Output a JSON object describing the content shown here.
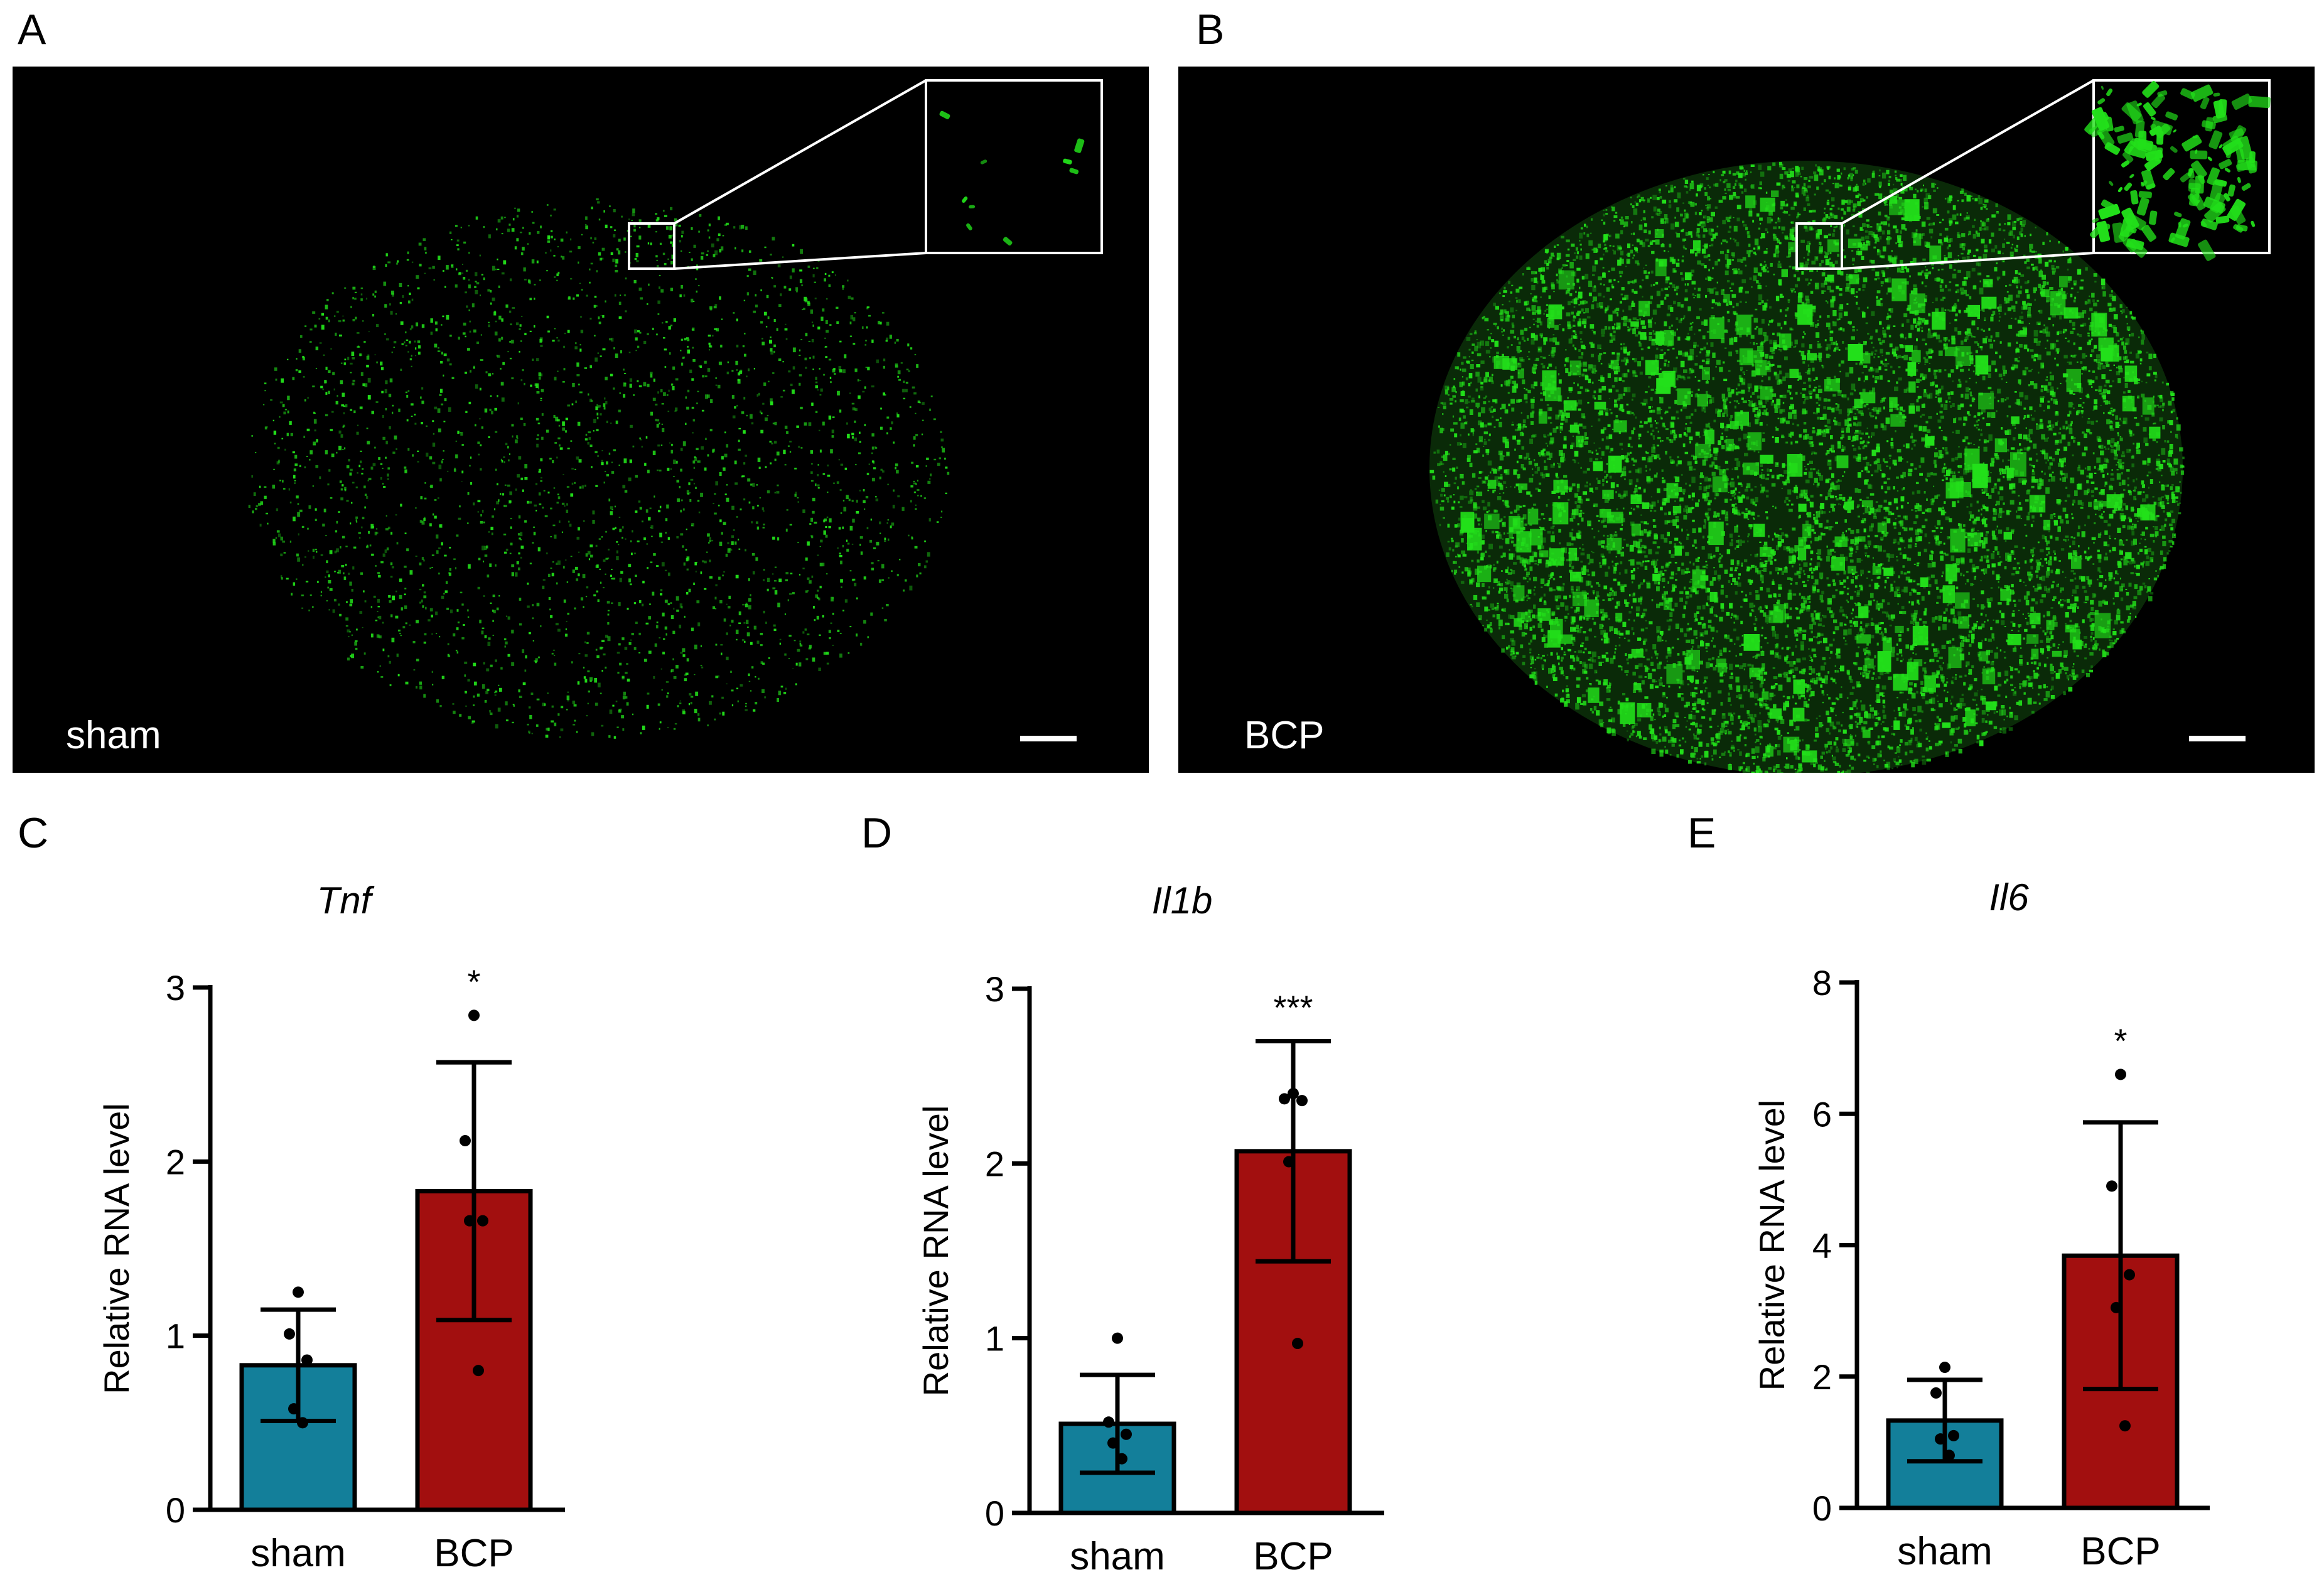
{
  "panels": {
    "A": {
      "letter": "A",
      "label": "sham"
    },
    "B": {
      "letter": "B",
      "label": "BCP"
    },
    "C": {
      "letter": "C"
    },
    "D": {
      "letter": "D"
    },
    "E": {
      "letter": "E"
    }
  },
  "colors": {
    "sham_bar": "#137f9a",
    "bcp_bar": "#a20f0f",
    "fluorescence": "#22e01a"
  },
  "chart_data": [
    {
      "panel": "C",
      "type": "bar",
      "title": "Tnf",
      "ylabel": "Relative RNA level",
      "categories": [
        "sham",
        "BCP"
      ],
      "values": [
        0.83,
        1.83
      ],
      "error": [
        0.32,
        0.74
      ],
      "points": [
        [
          1.25,
          1.01,
          0.86,
          0.58,
          0.5
        ],
        [
          2.84,
          2.12,
          1.66,
          1.66,
          0.8
        ]
      ],
      "significance": [
        "",
        "*"
      ],
      "ylim": [
        0,
        3
      ],
      "yticks": [
        0,
        1,
        2,
        3
      ]
    },
    {
      "panel": "D",
      "type": "bar",
      "title": "Il1b",
      "ylabel": "Relative RNA level",
      "categories": [
        "sham",
        "BCP"
      ],
      "values": [
        0.51,
        2.07
      ],
      "error": [
        0.28,
        0.63
      ],
      "points": [
        [
          1.0,
          0.52,
          0.45,
          0.4,
          0.31
        ],
        [
          2.4,
          2.37,
          2.36,
          2.01,
          0.97
        ]
      ],
      "significance": [
        "",
        "***"
      ],
      "ylim": [
        0,
        3
      ],
      "yticks": [
        0,
        1,
        2,
        3
      ]
    },
    {
      "panel": "E",
      "type": "bar",
      "title": "Il6",
      "ylabel": "Relative RNA level",
      "categories": [
        "sham",
        "BCP"
      ],
      "values": [
        1.33,
        3.84
      ],
      "error": [
        0.62,
        2.03
      ],
      "points": [
        [
          2.14,
          1.75,
          1.1,
          1.05,
          0.8
        ],
        [
          6.6,
          4.9,
          3.55,
          3.05,
          1.25
        ]
      ],
      "significance": [
        "",
        "*"
      ],
      "ylim": [
        0,
        8
      ],
      "yticks": [
        0,
        2,
        4,
        6,
        8
      ]
    }
  ]
}
